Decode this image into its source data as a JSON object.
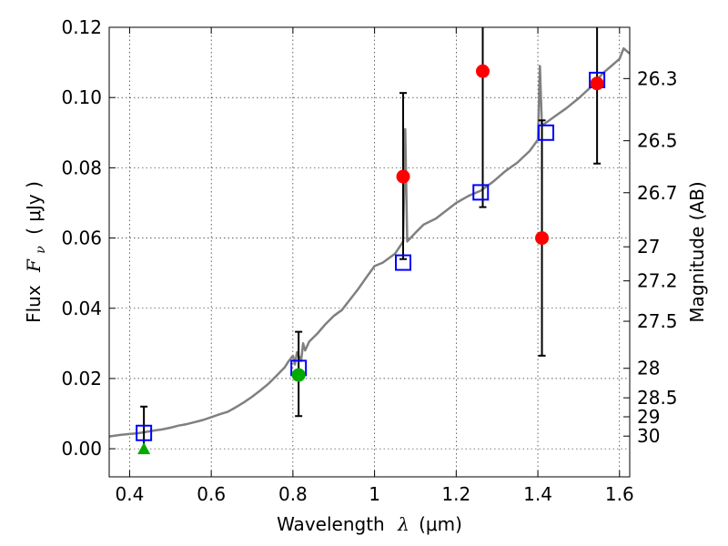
{
  "chart_data": {
    "type": "scatter",
    "x_axis": {
      "label_prefix": "Wavelength",
      "label_lambda": "λ",
      "label_unit": "(μm)",
      "range": [
        0.35,
        1.625
      ],
      "ticks": [
        0.4,
        0.6,
        0.8,
        1.0,
        1.2,
        1.4,
        1.6
      ],
      "tick_labels": [
        "0.4",
        "0.6",
        "0.8",
        "1",
        "1.2",
        "1.4",
        "1.6"
      ]
    },
    "y_axis": {
      "label_prefix": "Flux",
      "label_symbol": "F",
      "label_subscript": "ν",
      "label_unit": "( μJy )",
      "range": [
        -0.008,
        0.12
      ],
      "ticks": [
        0.0,
        0.02,
        0.04,
        0.06,
        0.08,
        0.1,
        0.12
      ],
      "tick_labels": [
        "0.00",
        "0.02",
        "0.04",
        "0.06",
        "0.08",
        "0.10",
        "0.12"
      ]
    },
    "y2_axis": {
      "label": "Magnitude (AB)",
      "ticks": [
        {
          "flux": 0.1054,
          "label": "26.3"
        },
        {
          "flux": 0.0877,
          "label": "26.5"
        },
        {
          "flux": 0.0729,
          "label": "26.7"
        },
        {
          "flux": 0.0575,
          "label": "27"
        },
        {
          "flux": 0.0478,
          "label": "27.2"
        },
        {
          "flux": 0.0363,
          "label": "27.5"
        },
        {
          "flux": 0.0229,
          "label": "28"
        },
        {
          "flux": 0.0145,
          "label": "28.5"
        },
        {
          "flux": 0.0091,
          "label": "29"
        },
        {
          "flux": 0.0036,
          "label": "30"
        }
      ]
    },
    "grid": true,
    "template_spectrum": {
      "color": "#808080",
      "points": [
        [
          0.35,
          0.0035
        ],
        [
          0.38,
          0.004
        ],
        [
          0.4,
          0.0042
        ],
        [
          0.42,
          0.0044
        ],
        [
          0.44,
          0.0048
        ],
        [
          0.46,
          0.0052
        ],
        [
          0.48,
          0.0055
        ],
        [
          0.5,
          0.006
        ],
        [
          0.52,
          0.0066
        ],
        [
          0.54,
          0.007
        ],
        [
          0.56,
          0.0076
        ],
        [
          0.58,
          0.0082
        ],
        [
          0.6,
          0.009
        ],
        [
          0.62,
          0.0098
        ],
        [
          0.64,
          0.0105
        ],
        [
          0.66,
          0.0118
        ],
        [
          0.68,
          0.0132
        ],
        [
          0.7,
          0.0148
        ],
        [
          0.72,
          0.0166
        ],
        [
          0.74,
          0.0185
        ],
        [
          0.76,
          0.0208
        ],
        [
          0.78,
          0.0232
        ],
        [
          0.79,
          0.025
        ],
        [
          0.8,
          0.0265
        ],
        [
          0.805,
          0.024
        ],
        [
          0.81,
          0.0275
        ],
        [
          0.82,
          0.025
        ],
        [
          0.825,
          0.03
        ],
        [
          0.83,
          0.028
        ],
        [
          0.84,
          0.0305
        ],
        [
          0.86,
          0.0328
        ],
        [
          0.88,
          0.0355
        ],
        [
          0.9,
          0.0378
        ],
        [
          0.92,
          0.0395
        ],
        [
          0.94,
          0.0425
        ],
        [
          0.96,
          0.0455
        ],
        [
          0.98,
          0.0488
        ],
        [
          1.0,
          0.052
        ],
        [
          1.02,
          0.053
        ],
        [
          1.05,
          0.0555
        ],
        [
          1.07,
          0.059
        ],
        [
          1.075,
          0.091
        ],
        [
          1.08,
          0.059
        ],
        [
          1.1,
          0.0615
        ],
        [
          1.12,
          0.0638
        ],
        [
          1.15,
          0.0655
        ],
        [
          1.18,
          0.0682
        ],
        [
          1.2,
          0.07
        ],
        [
          1.23,
          0.072
        ],
        [
          1.26,
          0.0735
        ],
        [
          1.29,
          0.076
        ],
        [
          1.32,
          0.079
        ],
        [
          1.35,
          0.0815
        ],
        [
          1.38,
          0.0848
        ],
        [
          1.4,
          0.088
        ],
        [
          1.405,
          0.109
        ],
        [
          1.41,
          0.092
        ],
        [
          1.44,
          0.0945
        ],
        [
          1.47,
          0.097
        ],
        [
          1.5,
          0.0998
        ],
        [
          1.53,
          0.103
        ],
        [
          1.56,
          0.107
        ],
        [
          1.58,
          0.109
        ],
        [
          1.6,
          0.111
        ],
        [
          1.61,
          0.114
        ],
        [
          1.625,
          0.1125
        ]
      ]
    },
    "model_photometry": {
      "marker": "open-square",
      "color": "#0000ff",
      "points": [
        [
          0.435,
          0.0045
        ],
        [
          0.814,
          0.023
        ],
        [
          1.07,
          0.053
        ],
        [
          1.26,
          0.073
        ],
        [
          1.42,
          0.09
        ],
        [
          1.545,
          0.105
        ]
      ]
    },
    "detections": {
      "marker": "circle",
      "color": "#ff0000",
      "points": [
        {
          "x": 1.07,
          "y": 0.0775,
          "yerr_low": 0.054,
          "yerr_high": 0.1013
        },
        {
          "x": 1.265,
          "y": 0.1075,
          "yerr_low": 0.0688,
          "yerr_high": 0.12
        },
        {
          "x": 1.41,
          "y": 0.06,
          "yerr_low": 0.0265,
          "yerr_high": 0.0935
        },
        {
          "x": 1.545,
          "y": 0.104,
          "yerr_low": 0.0812,
          "yerr_high": 0.12
        }
      ]
    },
    "green_detection": {
      "marker": "circle",
      "color": "#00aa00",
      "points": [
        {
          "x": 0.814,
          "y": 0.021,
          "yerr_low": 0.0093,
          "yerr_high": 0.0333
        }
      ]
    },
    "upper_limit": {
      "marker": "triangle",
      "color": "#00aa00",
      "points": [
        {
          "x": 0.435,
          "y": 0.0,
          "yerr_high": 0.012
        }
      ]
    }
  }
}
